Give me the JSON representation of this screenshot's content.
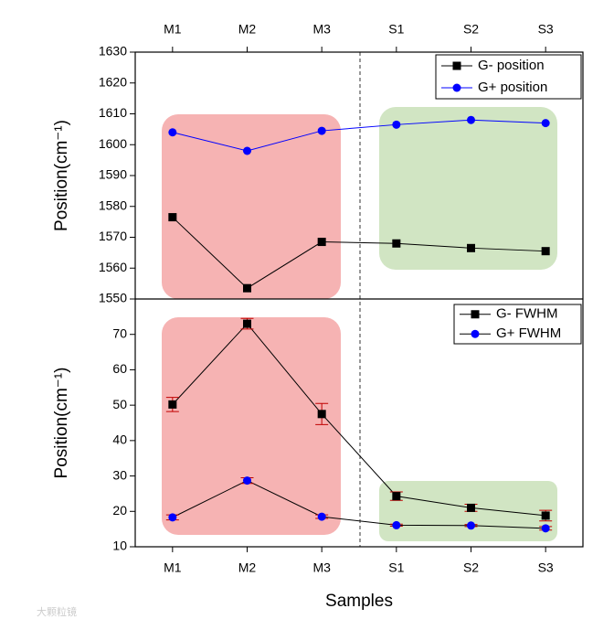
{
  "chart_data": [
    {
      "type": "line",
      "ylabel": "Position(cm⁻¹)",
      "categories": [
        "M1",
        "M2",
        "M3",
        "S1",
        "S2",
        "S3"
      ],
      "series": [
        {
          "name": "G- position",
          "color": "#000000",
          "line_color": "#000000",
          "marker": "square",
          "values": [
            1576.5,
            1553.5,
            1568.5,
            1568,
            1566.5,
            1565.5
          ]
        },
        {
          "name": "G+ position",
          "color": "#0000ff",
          "line_color": "#0000ff",
          "marker": "circle",
          "values": [
            1604,
            1598,
            1604.5,
            1606.5,
            1608,
            1607
          ]
        }
      ],
      "ylim": [
        1550,
        1630
      ],
      "yticks": [
        1550,
        1560,
        1570,
        1580,
        1590,
        1600,
        1610,
        1620,
        1630
      ],
      "legend": "upper right"
    },
    {
      "type": "line",
      "ylabel": "Position(cm⁻¹)",
      "xlabel": "Samples",
      "categories": [
        "M1",
        "M2",
        "M3",
        "S1",
        "S2",
        "S3"
      ],
      "series": [
        {
          "name": "G- FWHM",
          "color": "#000000",
          "line_color": "#000000",
          "marker": "square",
          "values": [
            50.2,
            73,
            47.5,
            24.3,
            21,
            18.8
          ],
          "errors": [
            2,
            1.5,
            3,
            1.2,
            1,
            1.5
          ]
        },
        {
          "name": "G+ FWHM",
          "color": "#0000ff",
          "line_color": "#000000",
          "marker": "circle",
          "values": [
            18.3,
            28.7,
            18.5,
            16.1,
            16,
            15.2
          ],
          "errors": [
            0.7,
            0.8,
            0.5,
            0.3,
            0.3,
            0.5
          ]
        }
      ],
      "error_color": "#c00000",
      "ylim": [
        10,
        80
      ],
      "yticks": [
        10,
        20,
        30,
        40,
        50,
        60,
        70
      ],
      "legend": "upper right"
    }
  ],
  "watermark": "大颗粒镜"
}
